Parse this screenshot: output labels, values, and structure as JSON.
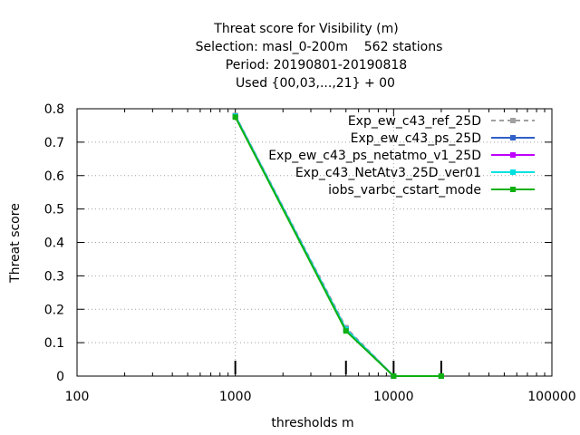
{
  "chart_data": {
    "type": "line",
    "title_lines": [
      "Threat score  for Visibility (m)",
      "Selection: masl_0-200m    562 stations",
      "Period: 20190801-20190818",
      "Used {00,03,...,21} + 00"
    ],
    "xlabel": "thresholds m",
    "ylabel": "Threat score",
    "xscale": "log",
    "xlim": [
      100,
      100000
    ],
    "ylim": [
      0,
      0.8
    ],
    "xticks": [
      100,
      1000,
      10000,
      100000
    ],
    "xtick_labels": [
      "100",
      "1000",
      "10000",
      "100000"
    ],
    "yticks": [
      0,
      0.1,
      0.2,
      0.3,
      0.4,
      0.5,
      0.6,
      0.7,
      0.8
    ],
    "ytick_labels": [
      "0",
      "0.1",
      "0.2",
      "0.3",
      "0.4",
      "0.5",
      "0.6",
      "0.7",
      "0.8"
    ],
    "grid": true,
    "legend_position": "top-right",
    "threshold_markers": [
      1000,
      5000,
      10000,
      20000
    ],
    "x": [
      1000,
      5000,
      10000,
      20000
    ],
    "series": [
      {
        "name": "Exp_ew_c43_ref_25D",
        "color": "#a0a0a0",
        "dashed": true,
        "values": [
          0.78,
          0.145,
          0.0,
          0.0
        ]
      },
      {
        "name": "Exp_ew_c43_ps_25D",
        "color": "#3060c8",
        "dashed": false,
        "values": [
          0.778,
          0.14,
          0.0,
          0.0
        ]
      },
      {
        "name": "Exp_ew_c43_ps_netatmo_v1_25D",
        "color": "#c000ff",
        "dashed": false,
        "values": [
          0.778,
          0.14,
          0.0,
          0.0
        ]
      },
      {
        "name": "Exp_c43_NetAtv3_25D_ver01",
        "color": "#00e0e0",
        "dashed": false,
        "values": [
          0.778,
          0.14,
          0.0,
          0.0
        ]
      },
      {
        "name": "iobs_varbc_cstart_mode",
        "color": "#10b010",
        "dashed": false,
        "values": [
          0.775,
          0.135,
          0.0,
          0.0
        ]
      }
    ]
  }
}
